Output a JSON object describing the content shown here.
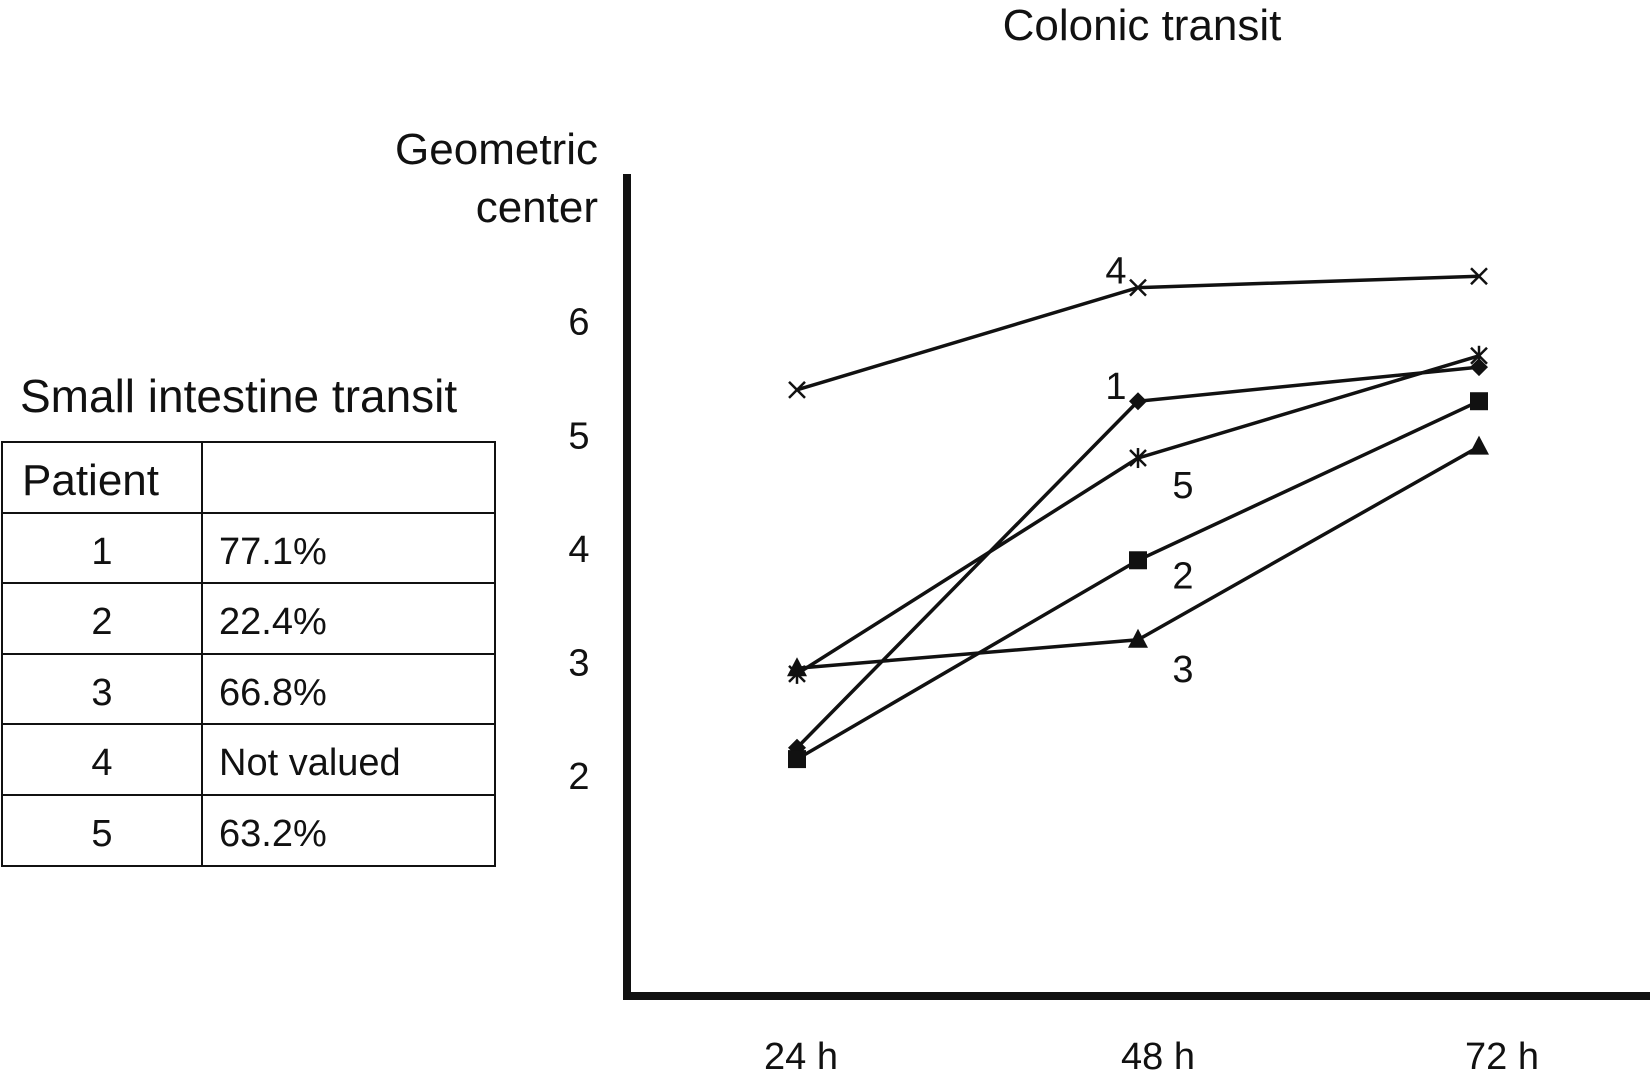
{
  "chart_data": [
    {
      "type": "table",
      "title": "Small intestine transit",
      "columns": [
        "Patient",
        ""
      ],
      "rows": [
        [
          "1",
          "77.1%"
        ],
        [
          "2",
          "22.4%"
        ],
        [
          "3",
          "66.8%"
        ],
        [
          "4",
          "Not valued"
        ],
        [
          "5",
          "63.2%"
        ]
      ]
    },
    {
      "type": "line",
      "title": "Colonic transit",
      "ylabel": [
        "Geometric",
        "center"
      ],
      "xlabel": "",
      "categories": [
        "24 h",
        "48 h",
        "72 h"
      ],
      "yticks": [
        "2",
        "3",
        "4",
        "5",
        "6"
      ],
      "ylim": [
        0.1,
        7.3
      ],
      "grid": false,
      "series": [
        {
          "name": "1",
          "marker": "diamond",
          "values": [
            2.25,
            5.3,
            5.6
          ]
        },
        {
          "name": "2",
          "marker": "square",
          "values": [
            2.15,
            3.9,
            5.3
          ]
        },
        {
          "name": "3",
          "marker": "triangle",
          "values": [
            2.95,
            3.2,
            4.9
          ]
        },
        {
          "name": "4",
          "marker": "x",
          "values": [
            5.4,
            6.3,
            6.4
          ]
        },
        {
          "name": "5",
          "marker": "asterisk",
          "values": [
            2.9,
            4.8,
            5.7
          ]
        }
      ]
    }
  ]
}
